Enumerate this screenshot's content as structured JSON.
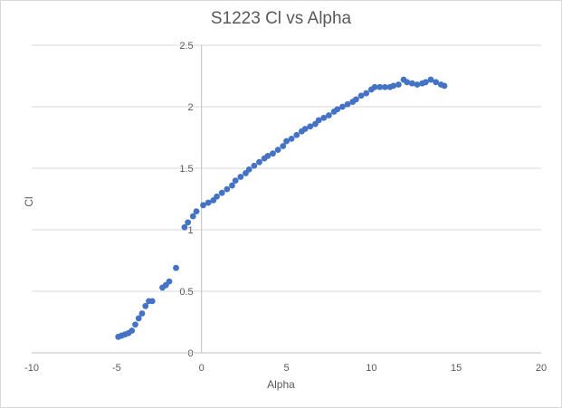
{
  "chart_data": {
    "type": "scatter",
    "title": "S1223 Cl vs Alpha",
    "xlabel": "Alpha",
    "ylabel": "Cl",
    "xlim": [
      -10,
      20
    ],
    "ylim": [
      0,
      2.5
    ],
    "x_ticks": [
      "-10",
      "-5",
      "0",
      "5",
      "10",
      "15",
      "20"
    ],
    "y_ticks": [
      "0",
      "0.5",
      "1",
      "1.5",
      "2",
      "2.5"
    ],
    "grid": "horizontal",
    "marker_color": "#4472c4",
    "series": [
      {
        "x": [
          -4.9,
          -4.7,
          -4.5,
          -4.3,
          -4.1,
          -3.9,
          -3.7,
          -3.5,
          -3.3,
          -3.1,
          -2.9,
          -2.3,
          -2.1,
          -1.9,
          -1.5,
          -1.0,
          -0.8,
          -0.5,
          -0.3,
          0.1,
          0.4,
          0.7,
          0.9,
          1.2,
          1.5,
          1.8,
          2.0,
          2.3,
          2.6,
          2.8,
          3.1,
          3.4,
          3.7,
          3.9,
          4.2,
          4.5,
          4.8,
          5.0,
          5.3,
          5.6,
          5.9,
          6.1,
          6.4,
          6.7,
          6.9,
          7.2,
          7.5,
          7.8,
          8.0,
          8.3,
          8.6,
          8.9,
          9.1,
          9.4,
          9.7,
          10.0,
          10.2,
          10.5,
          10.8,
          11.1,
          11.3,
          11.6,
          11.9,
          12.1,
          12.4,
          12.7,
          13.0,
          13.2,
          13.5,
          13.8,
          14.1,
          14.3
        ],
        "y": [
          0.13,
          0.14,
          0.15,
          0.16,
          0.18,
          0.23,
          0.28,
          0.32,
          0.38,
          0.42,
          0.42,
          0.53,
          0.55,
          0.58,
          0.69,
          1.02,
          1.06,
          1.11,
          1.15,
          1.2,
          1.22,
          1.24,
          1.27,
          1.3,
          1.33,
          1.36,
          1.4,
          1.43,
          1.46,
          1.49,
          1.52,
          1.55,
          1.58,
          1.6,
          1.62,
          1.65,
          1.68,
          1.72,
          1.74,
          1.77,
          1.8,
          1.82,
          1.84,
          1.86,
          1.89,
          1.91,
          1.93,
          1.96,
          1.98,
          2.0,
          2.02,
          2.04,
          2.06,
          2.09,
          2.11,
          2.14,
          2.16,
          2.16,
          2.16,
          2.16,
          2.17,
          2.18,
          2.22,
          2.2,
          2.19,
          2.18,
          2.19,
          2.2,
          2.22,
          2.2,
          2.18,
          2.17
        ]
      }
    ]
  }
}
